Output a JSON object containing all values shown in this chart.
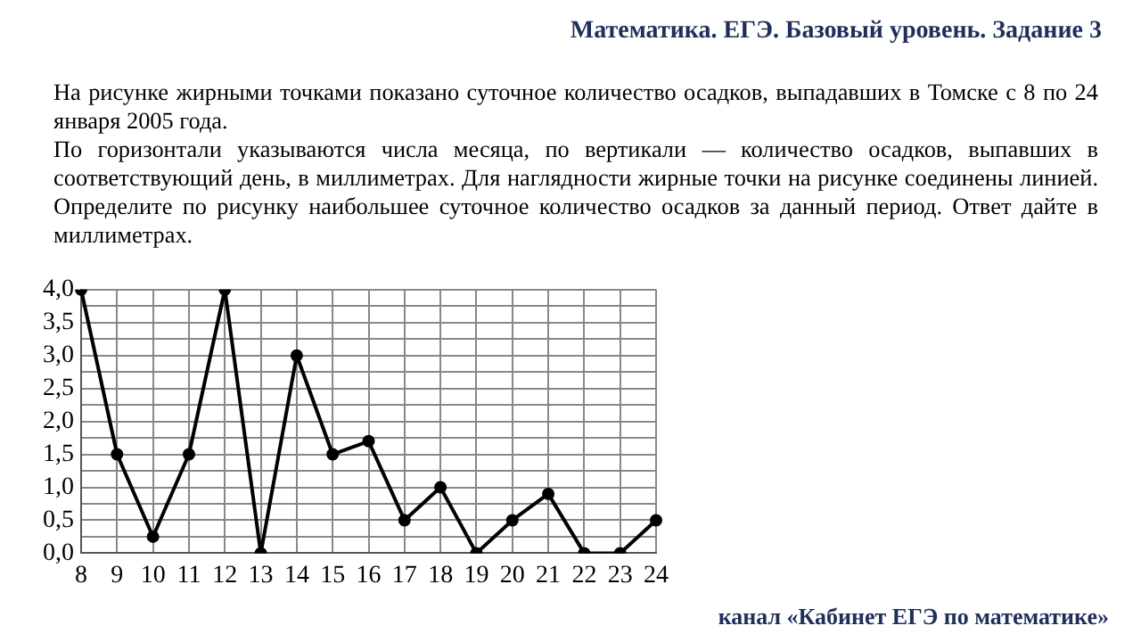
{
  "chart_data": {
    "type": "line",
    "title": "Математика. ЕГЭ. Базовый уровень. Задание 3",
    "subtitle": "На рисунке жирными точками показано суточное количество осадков, выпадавших в Томске с 8 по 24 января 2005 года.",
    "annotations": [
      "По горизонтали указываются числа месяца, по вертикали — количество осадков, выпавших в соответствующий день, в миллиметрах. Для наглядности жирные точки на рисунке соединены линией. Определите по рисунку наибольшее суточное количество осадков за данный период. Ответ дайте в миллиметрах.",
      "канал «Кабинет ЕГЭ по математике»"
    ],
    "categories": [
      "8",
      "9",
      "10",
      "11",
      "12",
      "13",
      "14",
      "15",
      "16",
      "17",
      "18",
      "19",
      "20",
      "21",
      "22",
      "23",
      "24"
    ],
    "series": [
      {
        "color": "#000000",
        "values": [
          4.0,
          1.5,
          0.25,
          1.5,
          4.0,
          0,
          3.0,
          1.5,
          1.7,
          0.5,
          1.0,
          0,
          0.5,
          0.9,
          0,
          0,
          0.5
        ]
      }
    ],
    "ylim": [
      0,
      4
    ],
    "yticks": [
      {
        "value": 0,
        "label": "0,0"
      },
      {
        "value": 0.25,
        "label": null
      },
      {
        "value": 0.5,
        "label": "0,5"
      },
      {
        "value": 0.75,
        "label": null
      },
      {
        "value": 1,
        "label": "1,0"
      },
      {
        "value": 1.25,
        "label": null
      },
      {
        "value": 1.5,
        "label": "1,5"
      },
      {
        "value": 1.75,
        "label": null
      },
      {
        "value": 2,
        "label": "2,0"
      },
      {
        "value": 2.25,
        "label": null
      },
      {
        "value": 2.5,
        "label": "2,5"
      },
      {
        "value": 2.75,
        "label": null
      },
      {
        "value": 3,
        "label": "3,0"
      },
      {
        "value": 3.25,
        "label": null
      },
      {
        "value": 3.5,
        "label": "3,5"
      },
      {
        "value": 3.75,
        "label": null
      },
      {
        "value": 4,
        "label": "4,0"
      }
    ],
    "grid": true,
    "legend": false,
    "marker": "circle",
    "line_style": "solid"
  }
}
